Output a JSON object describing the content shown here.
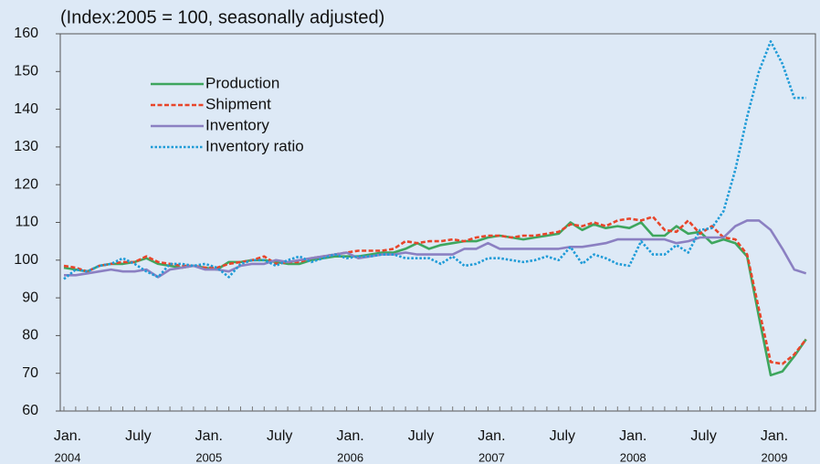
{
  "chart_data": {
    "type": "line",
    "subtitle": "(Index:2005 = 100, seasonally adjusted)",
    "categories": [
      "Jan.",
      null,
      null,
      null,
      null,
      null,
      "July",
      null,
      null,
      null,
      null,
      null,
      "Jan.",
      null,
      null,
      null,
      null,
      null,
      "July",
      null,
      null,
      null,
      null,
      null,
      "Jan.",
      null,
      null,
      null,
      null,
      null,
      "July",
      null,
      null,
      null,
      null,
      null,
      "Jan.",
      null,
      null,
      null,
      null,
      null,
      "July",
      null,
      null,
      null,
      null,
      null,
      "Jan.",
      null,
      null,
      null,
      null,
      null,
      "July",
      null,
      null,
      null,
      null,
      null,
      "Jan.",
      null,
      null,
      null
    ],
    "year_labels": [
      "2004",
      "2005",
      "2006",
      "2007",
      "2008",
      "2009"
    ],
    "ylim": [
      60,
      160
    ],
    "yticks": [
      60,
      70,
      80,
      90,
      100,
      110,
      120,
      130,
      140,
      150,
      160
    ],
    "legend": "upper left",
    "series": [
      {
        "name": "Production",
        "color": "#3ea65e",
        "dash": "solid",
        "values": [
          98,
          97.5,
          97,
          98.5,
          99,
          99,
          99.5,
          100.5,
          99,
          98.5,
          98,
          98.5,
          98,
          97.5,
          99.5,
          99.5,
          100,
          100,
          99.5,
          99,
          99,
          100,
          100.5,
          101,
          101,
          101,
          101.5,
          102,
          102,
          103,
          104.5,
          103,
          104,
          104.5,
          105,
          105,
          106,
          106.5,
          106,
          105.5,
          106,
          106.5,
          107,
          110,
          108,
          109.5,
          108.5,
          109,
          108.5,
          110,
          106.5,
          106.5,
          109,
          107,
          107.5,
          104.5,
          105.5,
          104.5,
          101,
          85,
          69.5,
          70.5,
          74.5,
          79
        ]
      },
      {
        "name": "Shipment",
        "color": "#e8452a",
        "dash": "dashed",
        "values": [
          98.5,
          98,
          97,
          98.5,
          99,
          99.5,
          99.5,
          101,
          99.5,
          99,
          98.5,
          98.5,
          98,
          98,
          99,
          99.5,
          100,
          101,
          99,
          99.5,
          99.5,
          100.5,
          101,
          101.5,
          102,
          102.5,
          102.5,
          102.5,
          103,
          105,
          104.5,
          105,
          105,
          105.5,
          105,
          106,
          106.5,
          106.5,
          106,
          106.5,
          106.5,
          107,
          107.5,
          109.5,
          109,
          110,
          109,
          110.5,
          111,
          110.5,
          111.5,
          108,
          107.5,
          110.5,
          107,
          109,
          106,
          105.5,
          101.5,
          87,
          73,
          72.5,
          75,
          79
        ]
      },
      {
        "name": "Inventory",
        "color": "#8b80c2",
        "dash": "solid",
        "values": [
          96,
          96,
          96.5,
          97,
          97.5,
          97,
          97,
          97.5,
          95.5,
          97.5,
          98,
          98.5,
          97.5,
          97.5,
          97,
          98.5,
          99,
          99,
          100,
          99.5,
          100,
          100.5,
          101,
          101.5,
          102,
          100.5,
          101,
          101.5,
          101.5,
          102,
          101.5,
          101.5,
          101.5,
          101.5,
          103,
          103,
          104.5,
          103,
          103,
          103,
          103,
          103,
          103,
          103.5,
          103.5,
          104,
          104.5,
          105.5,
          105.5,
          105.5,
          105.5,
          105.5,
          104.5,
          105,
          106,
          106,
          106,
          109,
          110.5,
          110.5,
          108,
          103,
          97.5,
          96.5
        ]
      },
      {
        "name": "Inventory ratio",
        "color": "#1f9bd7",
        "dash": "dotted",
        "values": [
          95,
          97.5,
          97,
          98.5,
          99,
          100.5,
          99,
          97,
          95.5,
          99,
          99,
          98.5,
          99,
          98,
          95.5,
          99,
          100,
          100,
          98.5,
          100,
          101,
          99.5,
          100.5,
          101.5,
          100.5,
          101,
          101,
          101.5,
          101.5,
          100.5,
          100.5,
          100.5,
          99,
          101,
          98.5,
          99,
          100.5,
          100.5,
          100,
          99.5,
          100,
          101,
          100,
          103.5,
          99,
          101.5,
          100.5,
          99,
          98.5,
          105,
          101.5,
          101.5,
          104,
          102,
          108,
          108.5,
          113,
          124,
          138,
          150,
          158,
          152,
          143,
          143
        ]
      }
    ]
  }
}
